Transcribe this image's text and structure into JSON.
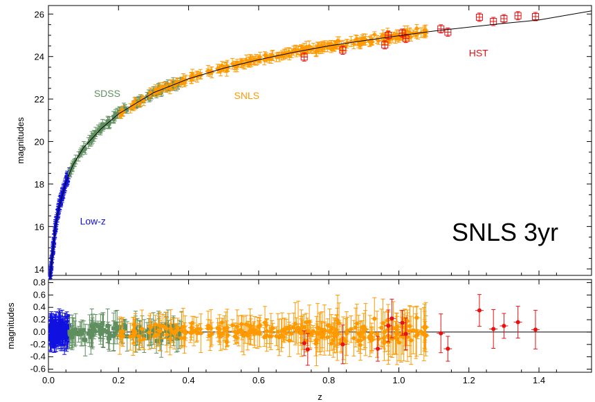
{
  "chart_data": [
    {
      "type": "scatter",
      "panel": "hubble-diagram",
      "ylabel": "magnitudes",
      "xlim": [
        0.0,
        1.55
      ],
      "ylim": [
        13.7,
        26.4
      ],
      "xticks": [
        0.0,
        0.2,
        0.4,
        0.6,
        0.8,
        1.0,
        1.2,
        1.4
      ],
      "yticks": [
        14,
        16,
        18,
        20,
        22,
        24,
        26
      ],
      "yticks_labels": [
        "14",
        "16",
        "18",
        "20",
        "22",
        "24",
        "26"
      ],
      "annotation": "SNLS 3yr",
      "model_curve": {
        "x": [
          0.005,
          0.01,
          0.02,
          0.03,
          0.05,
          0.07,
          0.1,
          0.15,
          0.2,
          0.3,
          0.4,
          0.5,
          0.6,
          0.7,
          0.8,
          0.9,
          1.0,
          1.1,
          1.2,
          1.3,
          1.4,
          1.55
        ],
        "y": [
          13.6,
          14.5,
          16.0,
          16.9,
          18.1,
          18.9,
          19.7,
          20.6,
          21.3,
          22.3,
          22.95,
          23.45,
          23.85,
          24.2,
          24.5,
          24.75,
          24.98,
          25.2,
          25.38,
          25.56,
          25.72,
          26.15
        ]
      },
      "series": [
        {
          "name": "Low-z",
          "color": "#1010e0",
          "marker": "square",
          "x_range": [
            0.005,
            0.06
          ],
          "label_pos": [
            0.09,
            16.1
          ]
        },
        {
          "name": "SDSS",
          "color": "#5f8f5f",
          "marker": "square",
          "x_range": [
            0.06,
            0.38
          ],
          "label_pos": [
            0.13,
            22.1
          ]
        },
        {
          "name": "SNLS",
          "color": "#ff9900",
          "marker": "circle",
          "x_range": [
            0.2,
            1.08
          ],
          "label_pos": [
            0.53,
            22.0
          ]
        },
        {
          "name": "HST",
          "color": "#e81010",
          "marker": "square",
          "x_range": [
            0.72,
            1.4
          ],
          "label_pos": [
            1.2,
            24.0
          ]
        }
      ],
      "hst_points_upper": {
        "x": [
          0.73,
          0.84,
          0.96,
          0.97,
          1.01,
          1.02,
          1.12,
          1.14,
          1.23,
          1.27,
          1.3,
          1.34,
          1.39
        ],
        "y": [
          23.98,
          24.3,
          24.55,
          25.0,
          25.1,
          24.85,
          25.3,
          25.15,
          25.85,
          25.65,
          25.78,
          25.92,
          25.88
        ]
      }
    },
    {
      "type": "scatter",
      "panel": "residuals",
      "xlabel": "z",
      "ylabel": "magnitudes",
      "xlim": [
        0.0,
        1.55
      ],
      "ylim": [
        -0.65,
        0.85
      ],
      "xticks": [
        0.0,
        0.2,
        0.4,
        0.6,
        0.8,
        1.0,
        1.2,
        1.4
      ],
      "xticks_labels": [
        "0.0",
        "0.2",
        "0.4",
        "0.6",
        "0.8",
        "1.0",
        "1.2",
        "1.4"
      ],
      "yticks": [
        -0.6,
        -0.4,
        -0.2,
        0.0,
        0.2,
        0.4,
        0.6,
        0.8
      ],
      "yticks_labels": [
        "-0.6",
        "-0.4",
        "-0.2",
        "0.0",
        "0.2",
        "0.4",
        "0.6",
        "0.8"
      ],
      "hst_points": {
        "x": [
          0.73,
          0.74,
          0.84,
          0.94,
          0.97,
          0.98,
          1.01,
          1.02,
          1.12,
          1.14,
          1.23,
          1.27,
          1.3,
          1.34,
          1.39
        ],
        "y": [
          -0.18,
          -0.28,
          -0.2,
          -0.27,
          0.1,
          0.22,
          0.15,
          -0.03,
          -0.02,
          -0.27,
          0.35,
          0.05,
          0.1,
          0.16,
          0.04
        ]
      }
    }
  ]
}
